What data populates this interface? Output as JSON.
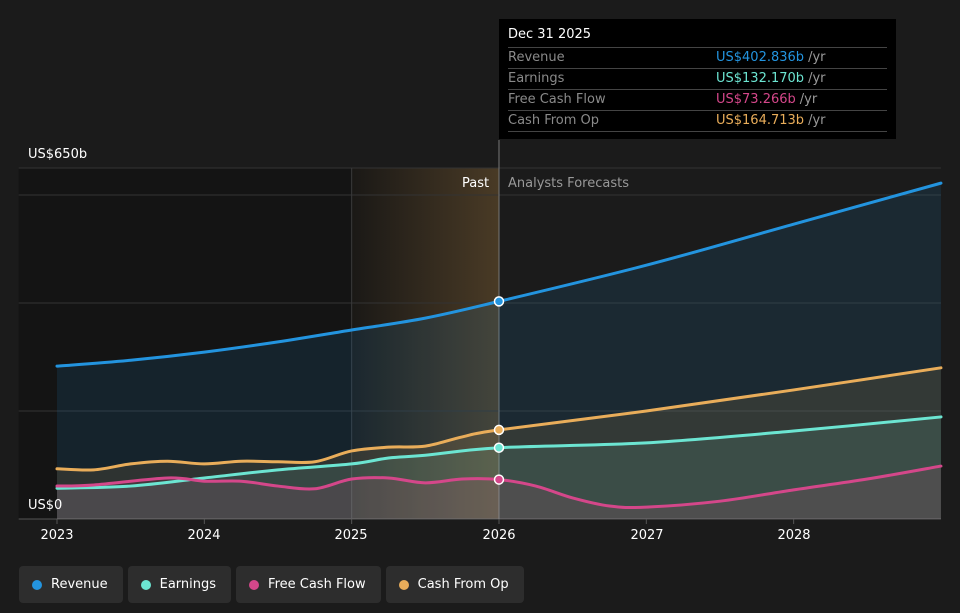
{
  "chart_data": {
    "type": "line",
    "x_unit": "year",
    "xlim": [
      2022.74,
      2029
    ],
    "ylim": [
      0,
      650
    ],
    "y_axis_labels": [
      "US$0",
      "US$650b"
    ],
    "x_ticks": [
      "2023",
      "2024",
      "2025",
      "2026",
      "2027",
      "2028"
    ],
    "grid": true,
    "past_label": "Past",
    "forecast_label": "Analysts Forecasts",
    "divider_year": 2026,
    "past_shading_start": 2025,
    "series": [
      {
        "name": "Revenue",
        "color": "#2394df",
        "x": [
          2023,
          2023.5,
          2024,
          2024.5,
          2025,
          2025.5,
          2026,
          2027,
          2028,
          2029
        ],
        "y": [
          283,
          294,
          309,
          328,
          350,
          372,
          403,
          470,
          546,
          622
        ]
      },
      {
        "name": "Earnings",
        "color": "#6ce5d2",
        "x": [
          2023,
          2023.5,
          2024,
          2024.5,
          2025,
          2025.25,
          2025.5,
          2026,
          2027,
          2028,
          2029
        ],
        "y": [
          57,
          61,
          76,
          91,
          102,
          113,
          118,
          132,
          141,
          163,
          189
        ]
      },
      {
        "name": "Free Cash Flow",
        "color": "#d4478a",
        "x": [
          2023,
          2023.25,
          2023.75,
          2024,
          2024.25,
          2024.5,
          2024.75,
          2025,
          2025.25,
          2025.5,
          2025.75,
          2026,
          2026.25,
          2026.5,
          2026.75,
          2027,
          2027.5,
          2028,
          2028.5,
          2029
        ],
        "y": [
          61,
          63,
          76,
          70,
          70,
          61,
          56,
          74,
          76,
          67,
          74,
          73,
          61,
          39,
          24,
          22,
          33,
          54,
          74,
          98
        ]
      },
      {
        "name": "Cash From Op",
        "color": "#e9ad5a",
        "x": [
          2023,
          2023.25,
          2023.5,
          2023.75,
          2024,
          2024.25,
          2024.5,
          2024.75,
          2025,
          2025.25,
          2025.5,
          2025.75,
          2026,
          2027,
          2028,
          2029
        ],
        "y": [
          93,
          91,
          102,
          107,
          102,
          107,
          106,
          106,
          126,
          133,
          135,
          152,
          165,
          200,
          239,
          280
        ]
      }
    ]
  },
  "tooltip": {
    "date": "Dec 31 2025",
    "rows": [
      {
        "label": "Revenue",
        "value": "US$402.836b",
        "unit": "/yr",
        "color": "#2394df"
      },
      {
        "label": "Earnings",
        "value": "US$132.170b",
        "unit": "/yr",
        "color": "#6ce5d2"
      },
      {
        "label": "Free Cash Flow",
        "value": "US$73.266b",
        "unit": "/yr",
        "color": "#d4478a"
      },
      {
        "label": "Cash From Op",
        "value": "US$164.713b",
        "unit": "/yr",
        "color": "#e9ad5a"
      }
    ]
  },
  "legend": [
    {
      "label": "Revenue",
      "color": "#2394df"
    },
    {
      "label": "Earnings",
      "color": "#6ce5d2"
    },
    {
      "label": "Free Cash Flow",
      "color": "#d4478a"
    },
    {
      "label": "Cash From Op",
      "color": "#e9ad5a"
    }
  ]
}
